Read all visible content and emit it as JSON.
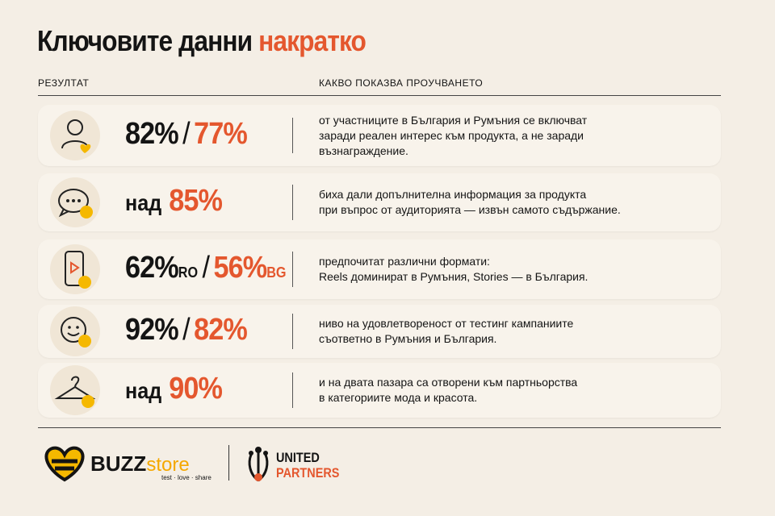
{
  "header": {
    "title": "Ключовите данни",
    "title_accent": "накратко"
  },
  "columns": {
    "result": "РЕЗУЛТАТ",
    "finding": "КАКВО ПОКАЗВА ПРОУЧВАНЕТО"
  },
  "rows": [
    {
      "parts": [
        "82%",
        "/",
        "77%"
      ],
      "description": [
        "от участниците в България и Румъния се включват",
        "заради реален интерес към продукта, а не заради",
        "възнаграждение."
      ]
    },
    {
      "parts": [
        "над",
        "85%"
      ],
      "description": [
        "биха дали допълнителна информация за продукта",
        "при въпрос от аудиторията — извън самото съдържание."
      ]
    },
    {
      "parts": [
        "62%",
        "RO",
        "/",
        "56%",
        "BG"
      ],
      "description": [
        "предпочитат различни формати:",
        "Reels доминират в Румъния, Stories — в България."
      ]
    },
    {
      "parts": [
        "92%",
        "/",
        "82%"
      ],
      "description": [
        "ниво на удовлетвореност от тестинг кампаниите",
        "съответно в Румъния и България."
      ]
    },
    {
      "parts": [
        "над",
        "90%"
      ],
      "description": [
        "и на двата пазара са отворени към партньорства",
        "в категориите мода и красота."
      ]
    }
  ],
  "footer": {
    "buzz": "BUZZ",
    "store": "store",
    "tagline": "test · love · share",
    "united": "UNITED",
    "partners": "PARTNERS"
  }
}
